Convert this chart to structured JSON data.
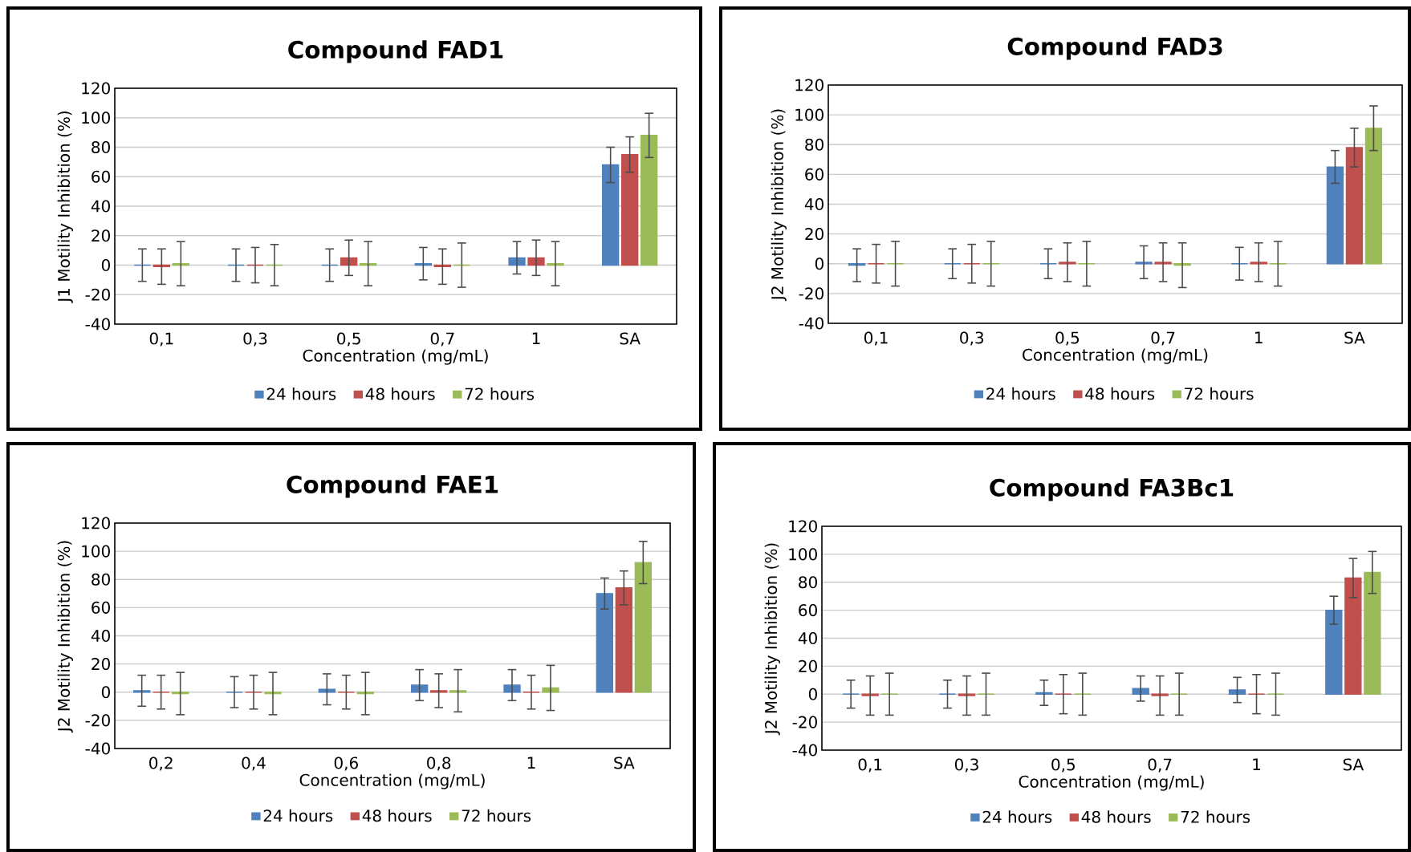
{
  "chart_data": [
    {
      "type": "bar",
      "title": "Compound FAD1",
      "xlabel": "Concentration (mg/mL)",
      "ylabel": "J1 Motility Inhibition (%)",
      "categories": [
        "0,1",
        "0,3",
        "0,5",
        "0,7",
        "1",
        "SA"
      ],
      "ylim": [
        -40,
        120
      ],
      "yticks": [
        -40,
        -20,
        0,
        20,
        40,
        60,
        80,
        100,
        120
      ],
      "grid": "y",
      "legend": "bottom",
      "series": [
        {
          "name": "24 hours",
          "color": "#4f81bd",
          "values": [
            0,
            0,
            0,
            1,
            5,
            68
          ],
          "errors": [
            11,
            11,
            11,
            11,
            11,
            12
          ]
        },
        {
          "name": "48 hours",
          "color": "#c0504d",
          "values": [
            -1,
            0,
            5,
            -1,
            5,
            75
          ],
          "errors": [
            12,
            12,
            12,
            12,
            12,
            12
          ]
        },
        {
          "name": "72 hours",
          "color": "#9bbb59",
          "values": [
            1,
            0,
            1,
            0,
            1,
            88
          ],
          "errors": [
            15,
            14,
            15,
            15,
            15,
            15
          ]
        }
      ]
    },
    {
      "type": "bar",
      "title": "Compound FAD3",
      "xlabel": "Concentration (mg/mL)",
      "ylabel": "J2 Motility Inhibition (%)",
      "categories": [
        "0,1",
        "0,3",
        "0,5",
        "0,7",
        "1",
        "SA"
      ],
      "ylim": [
        -40,
        120
      ],
      "yticks": [
        -40,
        -20,
        0,
        20,
        40,
        60,
        80,
        100,
        120
      ],
      "grid": "y",
      "legend": "bottom",
      "series": [
        {
          "name": "24 hours",
          "color": "#4f81bd",
          "values": [
            -1,
            0,
            0,
            1,
            0,
            65
          ],
          "errors": [
            11,
            10,
            10,
            11,
            11,
            11
          ]
        },
        {
          "name": "48 hours",
          "color": "#c0504d",
          "values": [
            0,
            0,
            1,
            1,
            1,
            78
          ],
          "errors": [
            13,
            13,
            13,
            13,
            13,
            13
          ]
        },
        {
          "name": "72 hours",
          "color": "#9bbb59",
          "values": [
            0,
            0,
            0,
            -1,
            0,
            91
          ],
          "errors": [
            15,
            15,
            15,
            15,
            15,
            15
          ]
        }
      ]
    },
    {
      "type": "bar",
      "title": "Compound FAE1",
      "xlabel": "Concentration (mg/mL)",
      "ylabel": "J2 Motility Inhibition (%)",
      "categories": [
        "0,2",
        "0,4",
        "0,6",
        "0,8",
        "1",
        "SA"
      ],
      "ylim": [
        -40,
        120
      ],
      "yticks": [
        -40,
        -20,
        0,
        20,
        40,
        60,
        80,
        100,
        120
      ],
      "grid": "y",
      "legend": "bottom",
      "series": [
        {
          "name": "24 hours",
          "color": "#4f81bd",
          "values": [
            1,
            0,
            2,
            5,
            5,
            70
          ],
          "errors": [
            11,
            11,
            11,
            11,
            11,
            11
          ]
        },
        {
          "name": "48 hours",
          "color": "#c0504d",
          "values": [
            0,
            0,
            0,
            1,
            0,
            74
          ],
          "errors": [
            12,
            12,
            12,
            12,
            12,
            12
          ]
        },
        {
          "name": "72 hours",
          "color": "#9bbb59",
          "values": [
            -1,
            -1,
            -1,
            1,
            3,
            92
          ],
          "errors": [
            15,
            15,
            15,
            15,
            16,
            15
          ]
        }
      ]
    },
    {
      "type": "bar",
      "title": "Compound FA3Bc1",
      "xlabel": "Concentration (mg/mL)",
      "ylabel": "J2 Motility Inhibition (%)",
      "categories": [
        "0,1",
        "0,3",
        "0,5",
        "0,7",
        "1",
        "SA"
      ],
      "ylim": [
        -40,
        120
      ],
      "yticks": [
        -40,
        -20,
        0,
        20,
        40,
        60,
        80,
        100,
        120
      ],
      "grid": "y",
      "legend": "bottom",
      "series": [
        {
          "name": "24 hours",
          "color": "#4f81bd",
          "values": [
            0,
            0,
            1,
            4,
            3,
            60
          ],
          "errors": [
            10,
            10,
            9,
            9,
            9,
            10
          ]
        },
        {
          "name": "48 hours",
          "color": "#c0504d",
          "values": [
            -1,
            -1,
            0,
            -1,
            0,
            83
          ],
          "errors": [
            14,
            14,
            14,
            14,
            14,
            14
          ]
        },
        {
          "name": "72 hours",
          "color": "#9bbb59",
          "values": [
            0,
            0,
            0,
            0,
            0,
            87
          ],
          "errors": [
            15,
            15,
            15,
            15,
            15,
            15
          ]
        }
      ]
    }
  ]
}
